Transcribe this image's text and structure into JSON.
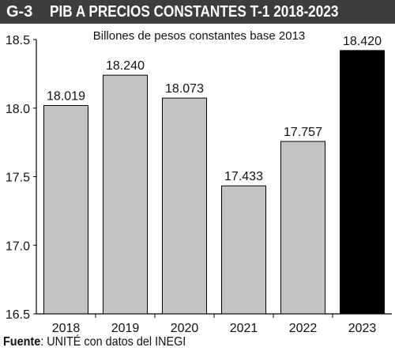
{
  "header": {
    "code": "G-3",
    "title": "PIB A PRECIOS CONSTANTES T-1 2018-2023"
  },
  "source": {
    "label": "Fuente",
    "separator": ":",
    "text": " UNITÉ con datos del INEGI"
  },
  "colors": {
    "bar": "#c4c4c4",
    "highlight": "#000000",
    "header_bg": "#3d3d3d"
  },
  "chart_data": {
    "type": "bar",
    "subtitle": "Billones de pesos constantes base 2013",
    "categories": [
      "2018",
      "2019",
      "2020",
      "2021",
      "2022",
      "2023"
    ],
    "values": [
      18.019,
      18.24,
      18.073,
      17.433,
      17.757,
      18.42
    ],
    "value_labels": [
      "18.019",
      "18.240",
      "18.073",
      "17.433",
      "17.757",
      "18.420"
    ],
    "highlight_index": 5,
    "ylim": [
      16.5,
      18.5
    ],
    "yticks": [
      16.5,
      17.0,
      17.5,
      18.0,
      18.5
    ],
    "ytick_labels": [
      "16.5",
      "17.0",
      "17.5",
      "18.0",
      "18.5"
    ],
    "grid": false
  }
}
